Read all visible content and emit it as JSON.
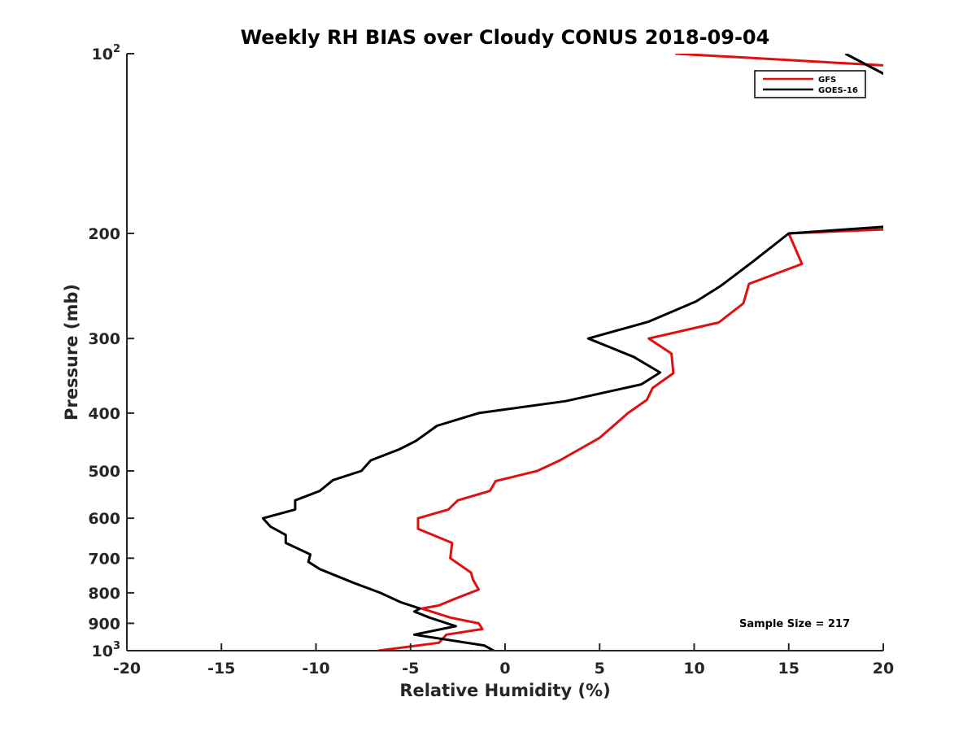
{
  "chart_data": {
    "type": "line",
    "title": "Weekly RH BIAS over Cloudy CONUS 2018-09-04",
    "xlabel": "Relative Humidity (%)",
    "ylabel": "Pressure (mb)",
    "xlim": [
      -20,
      20
    ],
    "ylim": [
      100,
      1000
    ],
    "yscale": "log",
    "y_reversed": true,
    "xticks": [
      "-20",
      "-15",
      "-10",
      "-5",
      "0",
      "5",
      "10",
      "15",
      "20"
    ],
    "xtick_values": [
      -20,
      -15,
      -10,
      -5,
      0,
      5,
      10,
      15,
      20
    ],
    "yticks": [
      {
        "value": 100,
        "base": "10",
        "exp": "2"
      },
      {
        "value": 200,
        "base": "200",
        "exp": ""
      },
      {
        "value": 300,
        "base": "300",
        "exp": ""
      },
      {
        "value": 400,
        "base": "400",
        "exp": ""
      },
      {
        "value": 500,
        "base": "500",
        "exp": ""
      },
      {
        "value": 600,
        "base": "600",
        "exp": ""
      },
      {
        "value": 700,
        "base": "700",
        "exp": ""
      },
      {
        "value": 800,
        "base": "800",
        "exp": ""
      },
      {
        "value": 900,
        "base": "900",
        "exp": ""
      },
      {
        "value": 1000,
        "base": "10",
        "exp": "3"
      }
    ],
    "grid": false,
    "legend_position": "top-right",
    "annotation": "Sample Size = 217",
    "series": [
      {
        "name": "GFS",
        "color": "#e01010",
        "x": [
          9.0,
          30.0,
          30.0,
          20.0,
          15.0,
          15.7,
          12.9,
          12.6,
          11.3,
          7.6,
          8.8,
          8.9,
          7.8,
          7.5,
          6.5,
          5.0,
          2.9,
          1.7,
          -0.5,
          -0.8,
          -2.5,
          -3.0,
          -4.6,
          -4.6,
          -2.8,
          -2.9,
          -1.8,
          -1.7,
          -1.4,
          -2.7,
          -3.5,
          -4.4,
          -2.9,
          -1.4,
          -1.2,
          -3.1,
          -3.5,
          -6.7
        ],
        "y": [
          100,
          109,
          190,
          197,
          200,
          225,
          243,
          262,
          282,
          300,
          318,
          343,
          363,
          380,
          400,
          440,
          480,
          500,
          520,
          540,
          560,
          580,
          600,
          625,
          660,
          700,
          740,
          760,
          790,
          820,
          840,
          850,
          880,
          900,
          920,
          940,
          970,
          1000
        ]
      },
      {
        "name": "GOES-16",
        "color": "#000000",
        "x": [
          18.0,
          20.0,
          30.0,
          20.0,
          15.0,
          13.1,
          11.4,
          10.1,
          7.6,
          4.4,
          6.8,
          8.2,
          7.2,
          3.2,
          -1.4,
          -3.6,
          -4.7,
          -5.6,
          -7.1,
          -7.6,
          -9.1,
          -9.8,
          -11.1,
          -11.1,
          -12.8,
          -12.4,
          -11.6,
          -11.6,
          -10.3,
          -10.4,
          -9.8,
          -8.0,
          -6.6,
          -5.5,
          -4.5,
          -4.8,
          -4.0,
          -2.6,
          -4.8,
          -1.1,
          -0.6
        ],
        "y": [
          100,
          108,
          190,
          195,
          200,
          223,
          245,
          260,
          281,
          300,
          322,
          342,
          358,
          382,
          400,
          420,
          445,
          460,
          480,
          500,
          518,
          540,
          560,
          580,
          600,
          620,
          640,
          660,
          690,
          710,
          730,
          770,
          800,
          830,
          850,
          860,
          880,
          910,
          940,
          980,
          1000
        ]
      }
    ]
  }
}
